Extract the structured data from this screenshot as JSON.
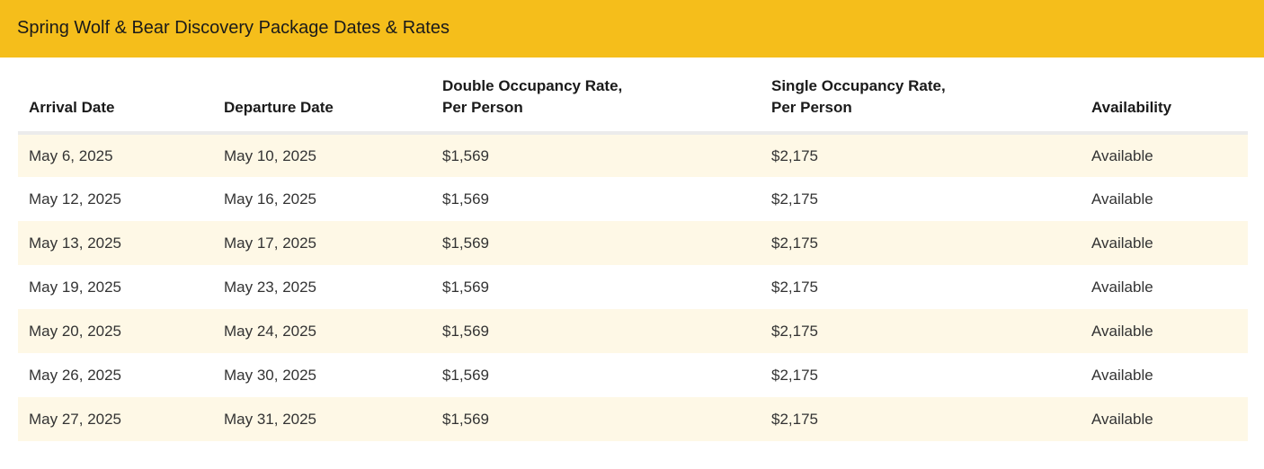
{
  "header": {
    "title": "Spring Wolf & Bear Discovery Package Dates & Rates"
  },
  "table": {
    "columns": [
      {
        "line1": "Arrival Date",
        "line2": ""
      },
      {
        "line1": "Departure Date",
        "line2": ""
      },
      {
        "line1": "Double Occupancy Rate,",
        "line2": "Per Person"
      },
      {
        "line1": "Single Occupancy Rate,",
        "line2": "Per Person"
      },
      {
        "line1": "Availability",
        "line2": ""
      }
    ],
    "rows": [
      {
        "arrival": "May 6, 2025",
        "departure": "May 10, 2025",
        "double": "$1,569",
        "single": "$2,175",
        "availability": "Available"
      },
      {
        "arrival": "May 12, 2025",
        "departure": "May 16, 2025",
        "double": "$1,569",
        "single": "$2,175",
        "availability": "Available"
      },
      {
        "arrival": "May 13, 2025",
        "departure": "May 17, 2025",
        "double": "$1,569",
        "single": "$2,175",
        "availability": "Available"
      },
      {
        "arrival": "May 19, 2025",
        "departure": "May 23, 2025",
        "double": "$1,569",
        "single": "$2,175",
        "availability": "Available"
      },
      {
        "arrival": "May 20, 2025",
        "departure": "May 24, 2025",
        "double": "$1,569",
        "single": "$2,175",
        "availability": "Available"
      },
      {
        "arrival": "May 26, 2025",
        "departure": "May 30, 2025",
        "double": "$1,569",
        "single": "$2,175",
        "availability": "Available"
      },
      {
        "arrival": "May 27, 2025",
        "departure": "May 31, 2025",
        "double": "$1,569",
        "single": "$2,175",
        "availability": "Available"
      }
    ]
  }
}
